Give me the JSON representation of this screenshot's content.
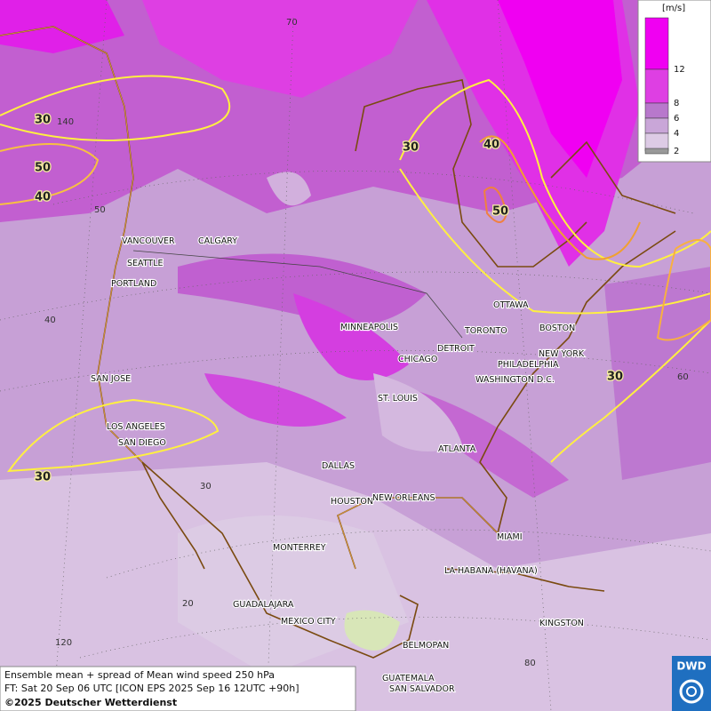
{
  "legend": {
    "unit": "[m/s]",
    "levels": [
      "12",
      "8",
      "6",
      "4",
      "2"
    ]
  },
  "cities": [
    "VANCOUVER",
    "CALGARY",
    "SEATTLE",
    "PORTLAND",
    "SAN JOSE",
    "LOS ANGELES",
    "SAN DIEGO",
    "MINNEAPOLIS",
    "TORONTO",
    "DETROIT",
    "CHICAGO",
    "OTTAWA",
    "BOSTON",
    "NEW YORK",
    "PHILADELPHIA",
    "WASHINGTON D.C.",
    "ST. LOUIS",
    "ATLANTA",
    "DALLAS",
    "HOUSTON",
    "NEW ORLEANS",
    "MIAMI",
    "MONTERREY",
    "LA HABANA (HAVANA)",
    "GUADALAJARA",
    "MEXICO CITY",
    "BELMOPAN",
    "KINGSTON",
    "GUATEMALA",
    "SAN SALVADOR"
  ],
  "contour_labels": [
    "30",
    "50",
    "40",
    "30",
    "40",
    "50",
    "30",
    "30"
  ],
  "grid_labels": [
    "70",
    "140",
    "50",
    "40",
    "30",
    "20",
    "120",
    "60",
    "80"
  ],
  "footer": {
    "line1": "Ensemble mean + spread of Mean wind speed 250 hPa",
    "line2": "FT: Sat 20 Sep 06 UTC [ICON EPS 2025 Sep 16 12UTC +90h]",
    "line3": "©2025 Deutscher Wetterdienst"
  },
  "logo": "DWD"
}
